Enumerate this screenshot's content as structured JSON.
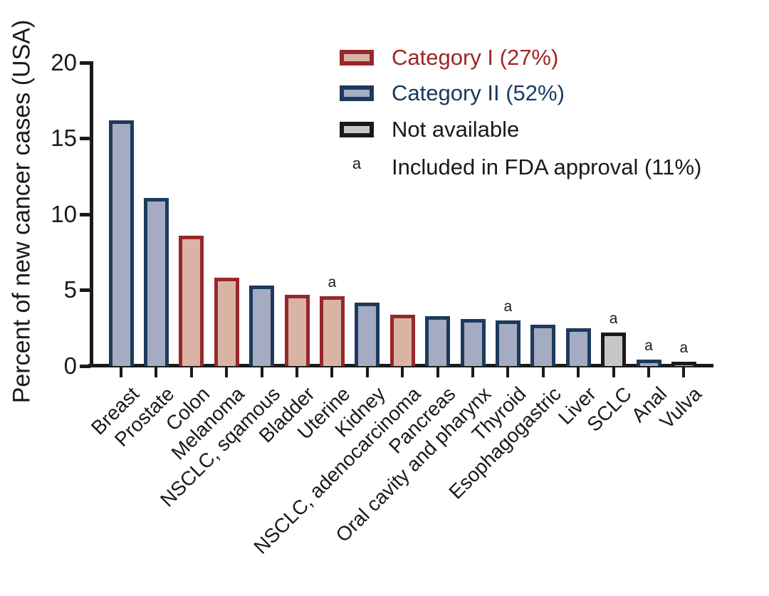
{
  "figure": {
    "y_axis_label": "Percent of new cancer cases (USA)",
    "y_tick_labels": [
      "20",
      "15",
      "10",
      "5",
      "0"
    ],
    "fda_marker_char": "a"
  },
  "legend": {
    "items": [
      {
        "key": "category1",
        "swatch": "box",
        "label": "Category I (27%)"
      },
      {
        "key": "category2",
        "swatch": "box",
        "label": "Category II (52%)"
      },
      {
        "key": "na",
        "swatch": "box",
        "label": "Not available"
      },
      {
        "key": "fda",
        "swatch": "marker",
        "marker": "a",
        "label": "Included in FDA approval (11%)"
      }
    ]
  },
  "chart_data": {
    "type": "bar",
    "title": "",
    "xlabel": "",
    "ylabel": "Percent of new cancer cases (USA)",
    "ylim": [
      0,
      20
    ],
    "yticks": [
      0,
      5,
      10,
      15,
      20
    ],
    "grid": false,
    "legend_position": "top-right",
    "categories": [
      "Breast",
      "Prostate",
      "Colon",
      "Melanoma",
      "NSCLC, sqamous",
      "Bladder",
      "Uterine",
      "Kidney",
      "NSCLC, adenocarcinoma",
      "Pancreas",
      "Oral cavity and pharynx",
      "Thyroid",
      "Esophagogastric",
      "Liver",
      "SCLC",
      "Anal",
      "Vulva"
    ],
    "values": [
      16.2,
      11.1,
      8.6,
      5.8,
      5.3,
      4.7,
      4.6,
      4.2,
      3.4,
      3.3,
      3.1,
      3.0,
      2.7,
      2.5,
      2.2,
      0.4,
      0.3
    ],
    "bar_category": [
      "II",
      "II",
      "I",
      "I",
      "II",
      "I",
      "I",
      "II",
      "I",
      "II",
      "II",
      "II",
      "II",
      "II",
      "NA",
      "II",
      "NA"
    ],
    "fda_approval_marker": [
      false,
      false,
      false,
      false,
      false,
      false,
      true,
      false,
      false,
      false,
      false,
      true,
      false,
      false,
      true,
      true,
      true
    ]
  },
  "colors": {
    "category1_fill": "#d9b4a4",
    "category1_stroke": "#97282a",
    "category1_text": "#9b2626",
    "category2_fill": "#a5acc1",
    "category2_stroke": "#1b3a5e",
    "category2_text": "#17395f",
    "na_fill": "#c7c7c5",
    "na_stroke": "#1a1a1a",
    "na_text": "#1a1a1a",
    "fda_text": "#1a1a1a",
    "axis": "#1a1a1a"
  }
}
